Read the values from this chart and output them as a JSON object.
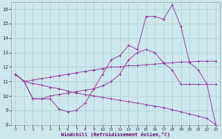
{
  "xlabel": "Windchill (Refroidissement éolien,°C)",
  "background_color": "#cce8ec",
  "grid_color": "#aacccc",
  "line_color": "#993399",
  "xlim": [
    -0.5,
    23.5
  ],
  "ylim": [
    8,
    16.5
  ],
  "yticks": [
    8,
    9,
    10,
    11,
    12,
    13,
    14,
    15,
    16
  ],
  "xticks": [
    0,
    1,
    2,
    3,
    4,
    5,
    6,
    7,
    8,
    9,
    10,
    11,
    12,
    13,
    14,
    15,
    16,
    17,
    18,
    19,
    20,
    21,
    22,
    23
  ],
  "line1_x": [
    0,
    1,
    2,
    3,
    4,
    5,
    6,
    7,
    8,
    9,
    10,
    11,
    12,
    13,
    14,
    15,
    16,
    17,
    18,
    19,
    20,
    21,
    22,
    23
  ],
  "line1_y": [
    11.5,
    11.0,
    11.1,
    11.2,
    11.3,
    11.4,
    11.5,
    11.6,
    11.7,
    11.8,
    11.9,
    12.0,
    12.0,
    12.1,
    12.1,
    12.15,
    12.2,
    12.25,
    12.3,
    12.35,
    12.35,
    12.4,
    12.4,
    12.4
  ],
  "line2_x": [
    0,
    1,
    2,
    3,
    4,
    5,
    6,
    7,
    8,
    9,
    10,
    11,
    12,
    13,
    14,
    15,
    16,
    17,
    18,
    19,
    20,
    21,
    22,
    23
  ],
  "line2_y": [
    11.5,
    11.0,
    10.85,
    10.75,
    10.6,
    10.5,
    10.35,
    10.2,
    10.1,
    10.0,
    9.9,
    9.8,
    9.7,
    9.6,
    9.5,
    9.4,
    9.3,
    9.2,
    9.05,
    8.9,
    8.75,
    8.6,
    8.45,
    8.0
  ],
  "line3_x": [
    0,
    1,
    2,
    3,
    4,
    5,
    6,
    7,
    8,
    9,
    10,
    11,
    12,
    13,
    14,
    15,
    16,
    17,
    18,
    19,
    20,
    21,
    22,
    23
  ],
  "line3_y": [
    11.5,
    11.0,
    9.8,
    9.8,
    10.0,
    10.1,
    10.2,
    10.3,
    10.4,
    10.5,
    10.7,
    11.0,
    11.5,
    12.5,
    13.0,
    13.2,
    13.0,
    12.3,
    11.8,
    10.8,
    10.8,
    10.8,
    10.8,
    10.8
  ],
  "line4_x": [
    0,
    1,
    2,
    3,
    4,
    5,
    6,
    7,
    8,
    9,
    10,
    11,
    12,
    13,
    14,
    15,
    16,
    17,
    18,
    19,
    20,
    21,
    22,
    23
  ],
  "line4_y": [
    11.5,
    11.0,
    9.8,
    9.8,
    9.8,
    9.1,
    8.9,
    9.0,
    9.5,
    10.5,
    11.5,
    12.5,
    12.8,
    13.5,
    13.2,
    15.5,
    15.5,
    15.3,
    16.3,
    14.8,
    12.3,
    11.8,
    10.8,
    8.0
  ]
}
